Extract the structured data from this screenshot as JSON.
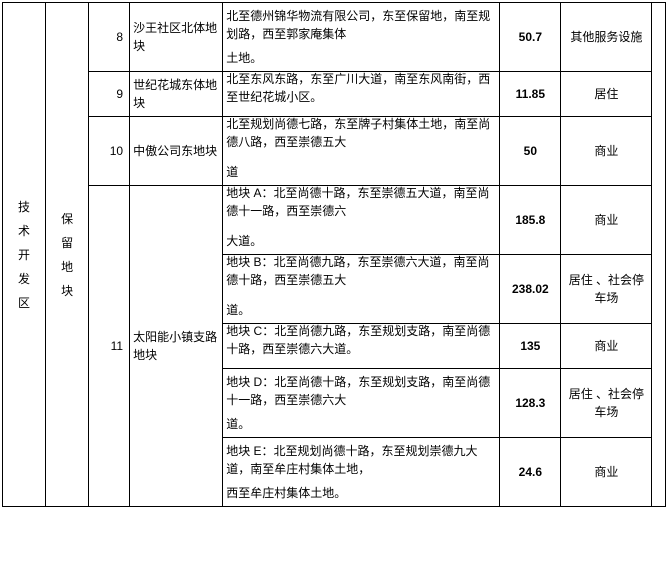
{
  "zone": "技术开发区",
  "block": "保留地块",
  "rows": [
    {
      "num": "8",
      "name": "沙王社区北体地块",
      "desc": [
        "北至德州锦华物流有限公司，东至保留地，南至规划路，西至郭家庵集体",
        "土地。"
      ],
      "value": "50.7",
      "use": "其他服务设施"
    },
    {
      "num": "9",
      "name": "世纪花城东体地块",
      "desc": [
        "北至东风东路，东至广川大道，南至东风南街，西至世纪花城小区。"
      ],
      "value": "11.85",
      "use": "居住"
    },
    {
      "num": "10",
      "name": "中傲公司东地块",
      "desc": [
        "北至规划尚德七路，东至牌子村集体土地，南至尚德八路，西至崇德五大",
        "道"
      ],
      "value": "50",
      "use": "商业"
    },
    {
      "num": "11",
      "name": "太阳能小镇支路地块",
      "sub": [
        {
          "desc": [
            "地块 A：北至尚德十路，东至崇德五大道，南至尚德十一路，西至崇德六",
            "大道。"
          ],
          "value": "185.8",
          "use": "商业"
        },
        {
          "desc": [
            "地块 B：北至尚德九路，东至崇德六大道，南至尚德十路，西至崇德五大",
            "道。"
          ],
          "value": "238.02",
          "use": "居住 、社会停车场"
        },
        {
          "desc": [
            "地块 C：北至尚德九路，东至规划支路，南至尚德十路，西至崇德六大道。"
          ],
          "value": "135",
          "use": "商业"
        },
        {
          "desc": [
            "地块 D：北至尚德十路，东至规划支路，南至尚德十一路，西至崇德六大",
            "道。"
          ],
          "value": "128.3",
          "use": "居住 、社会停车场"
        },
        {
          "desc": [
            "地块 E：北至规划尚德十路，东至规划崇德九大道，南至牟庄村集体土地，",
            "西至牟庄村集体土地。"
          ],
          "value": "24.6",
          "use": "商业"
        }
      ]
    }
  ]
}
